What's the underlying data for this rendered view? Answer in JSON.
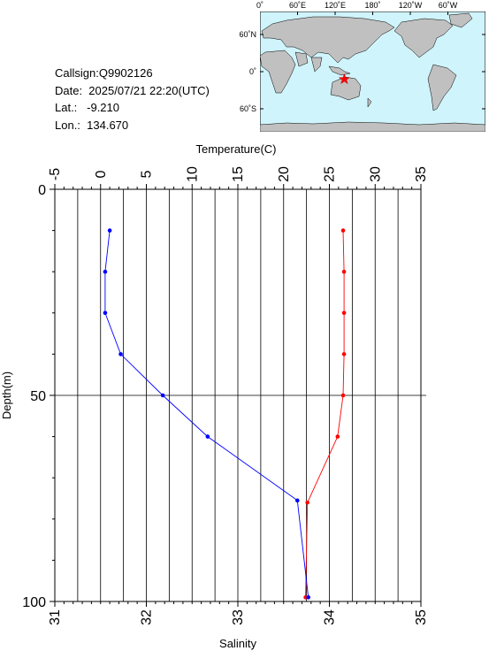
{
  "info": {
    "callsign": "Callsign:Q9902126",
    "date": "Date:  2025/07/21 22:20(UTC)",
    "lat": "Lat.:   -9.210",
    "lon": "Lon.:  134.670"
  },
  "map": {
    "top_labels": [
      "0˚",
      "60˚E",
      "120˚E",
      "180˚",
      "120˚W",
      "60˚W"
    ],
    "side_labels": [
      "60˚N",
      "0˚",
      "60˚S"
    ],
    "marker_lat": -9.21,
    "marker_lon": 134.67,
    "ocean_color": "#cff4fb",
    "land_color": "#c0c0c0",
    "marker_color": "#ff0000"
  },
  "chart_data": {
    "type": "line",
    "xlabel_top": "Temperature(C)",
    "xlabel_bottom": "Salinity",
    "ylabel": "Depth(m)",
    "temp_range": [
      -5,
      35
    ],
    "salinity_range": [
      31,
      35
    ],
    "depth_range": [
      0,
      100
    ],
    "temp_ticks": [
      "-5",
      "0",
      "5",
      "10",
      "15",
      "20",
      "25",
      "30",
      "35"
    ],
    "salinity_ticks": [
      "31",
      "32",
      "33",
      "34",
      "35"
    ],
    "depth_ticks": [
      "0",
      "50",
      "100"
    ],
    "grid": true,
    "series": [
      {
        "name": "",
        "axis": "temperature",
        "color": "#ff0000",
        "points": [
          [
            26.5,
            10
          ],
          [
            26.6,
            20
          ],
          [
            26.6,
            30
          ],
          [
            26.6,
            40
          ],
          [
            26.5,
            50
          ],
          [
            25.9,
            60
          ],
          [
            22.6,
            76
          ],
          [
            22.4,
            99
          ]
        ]
      },
      {
        "name": "",
        "axis": "salinity",
        "color": "#0000ff",
        "points": [
          [
            31.6,
            10
          ],
          [
            31.55,
            20
          ],
          [
            31.55,
            30
          ],
          [
            31.72,
            40
          ],
          [
            32.18,
            50
          ],
          [
            32.67,
            60
          ],
          [
            33.65,
            75.5
          ],
          [
            33.77,
            99
          ]
        ]
      }
    ]
  }
}
